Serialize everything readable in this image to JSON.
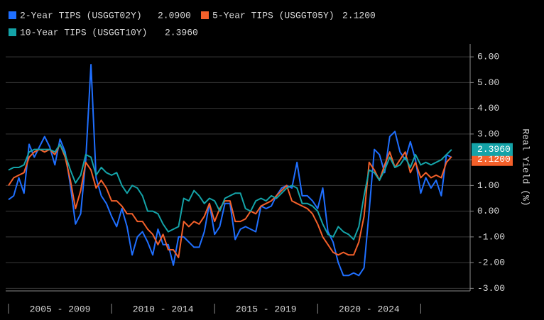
{
  "chart_data": {
    "type": "line",
    "y_axis_label": "Real Yield (%)",
    "x": [
      2005,
      2005.25,
      2005.5,
      2005.75,
      2006,
      2006.25,
      2006.5,
      2006.75,
      2007,
      2007.25,
      2007.5,
      2007.75,
      2008,
      2008.25,
      2008.5,
      2008.75,
      2009,
      2009.25,
      2009.5,
      2009.75,
      2010,
      2010.25,
      2010.5,
      2010.75,
      2011,
      2011.25,
      2011.5,
      2011.75,
      2012,
      2012.25,
      2012.5,
      2012.75,
      2013,
      2013.25,
      2013.5,
      2013.75,
      2014,
      2014.25,
      2014.5,
      2014.75,
      2015,
      2015.25,
      2015.5,
      2015.75,
      2016,
      2016.25,
      2016.5,
      2016.75,
      2017,
      2017.25,
      2017.5,
      2017.75,
      2018,
      2018.25,
      2018.5,
      2018.75,
      2019,
      2019.25,
      2019.5,
      2019.75,
      2020,
      2020.25,
      2020.5,
      2020.75,
      2021,
      2021.25,
      2021.5,
      2021.75,
      2022,
      2022.25,
      2022.5,
      2022.75,
      2023,
      2023.25,
      2023.5,
      2023.75,
      2024,
      2024.25,
      2024.5,
      2024.75,
      2025,
      2025.25,
      2025.5,
      2025.75,
      2026,
      2026.25,
      2026.5
    ],
    "xlim": [
      2005,
      2027.4
    ],
    "xticks": [
      2005,
      2010,
      2015,
      2020,
      2025
    ],
    "x_period_labels": [
      "2005 - 2009",
      "2010 - 2014",
      "2015 - 2019",
      "2020 - 2024"
    ],
    "ylim": [
      -3.1,
      6.5
    ],
    "yticks": [
      {
        "value": -3,
        "label": "-3.00"
      },
      {
        "value": -2,
        "label": "-2.00"
      },
      {
        "value": -1,
        "label": "-1.00"
      },
      {
        "value": 0,
        "label": "0.00"
      },
      {
        "value": 1,
        "label": "1.00"
      },
      {
        "value": 2,
        "label": "2.00"
      },
      {
        "value": 3,
        "label": "3.00"
      },
      {
        "value": 4,
        "label": "4.00"
      },
      {
        "value": 5,
        "label": "5.00"
      },
      {
        "value": 6,
        "label": "6.00"
      }
    ],
    "grid": true,
    "series": [
      {
        "name": "2-Year TIPS (USGGT02Y)",
        "color": "#1f6fff",
        "last_label": "2.0900",
        "values": [
          0.45,
          0.6,
          1.3,
          0.7,
          2.6,
          2.1,
          2.5,
          2.9,
          2.5,
          1.8,
          2.8,
          2.3,
          1.0,
          -0.5,
          -0.1,
          2.0,
          5.7,
          1.3,
          0.6,
          0.3,
          -0.2,
          -0.6,
          0.1,
          -0.6,
          -1.7,
          -1.0,
          -0.8,
          -1.2,
          -1.7,
          -0.7,
          -1.3,
          -1.3,
          -2.1,
          -1.0,
          -1.0,
          -1.2,
          -1.4,
          -1.4,
          -0.8,
          0.3,
          -0.9,
          -0.6,
          0.3,
          0.3,
          -1.1,
          -0.7,
          -0.6,
          -0.7,
          -0.8,
          0.2,
          0.1,
          0.2,
          0.6,
          0.9,
          1.0,
          0.9,
          1.9,
          0.6,
          0.6,
          0.4,
          0.1,
          0.9,
          -0.8,
          -1.2,
          -2.0,
          -2.5,
          -2.5,
          -2.4,
          -2.5,
          -2.2,
          0.0,
          2.4,
          2.2,
          1.5,
          2.9,
          3.1,
          2.3,
          2.0,
          2.7,
          2.0,
          0.7,
          1.3,
          0.9,
          1.2,
          0.6,
          2.2,
          2.09
        ]
      },
      {
        "name": "5-Year TIPS (USGGT05Y)",
        "color": "#f4602a",
        "last_label": "2.1200",
        "values": [
          1.0,
          1.3,
          1.4,
          1.5,
          2.1,
          2.3,
          2.4,
          2.3,
          2.4,
          2.2,
          2.6,
          2.1,
          1.2,
          0.1,
          0.8,
          1.9,
          1.6,
          0.9,
          1.2,
          0.9,
          0.4,
          0.4,
          0.2,
          -0.1,
          -0.1,
          -0.4,
          -0.4,
          -0.7,
          -0.9,
          -1.3,
          -0.9,
          -1.5,
          -1.5,
          -1.8,
          -0.4,
          -0.6,
          -0.4,
          -0.5,
          -0.2,
          0.3,
          -0.4,
          0.1,
          0.4,
          0.4,
          -0.4,
          -0.4,
          -0.3,
          0.0,
          -0.1,
          0.2,
          0.3,
          0.4,
          0.6,
          0.8,
          1.0,
          0.4,
          0.3,
          0.2,
          0.1,
          -0.1,
          -0.5,
          -1.0,
          -1.3,
          -1.6,
          -1.7,
          -1.6,
          -1.7,
          -1.7,
          -1.2,
          -0.2,
          1.9,
          1.6,
          1.2,
          1.8,
          2.3,
          1.7,
          2.0,
          2.3,
          1.5,
          1.9,
          1.3,
          1.5,
          1.3,
          1.4,
          1.3,
          1.9,
          2.12
        ]
      },
      {
        "name": "10-Year TIPS (USGGT10Y)",
        "color": "#14a3a8",
        "last_label": "2.3960",
        "values": [
          1.6,
          1.7,
          1.7,
          1.8,
          2.3,
          2.4,
          2.4,
          2.4,
          2.4,
          2.3,
          2.6,
          2.2,
          1.6,
          1.1,
          1.4,
          2.2,
          2.1,
          1.4,
          1.7,
          1.5,
          1.4,
          1.5,
          1.0,
          0.7,
          1.0,
          0.9,
          0.6,
          0.0,
          0.0,
          -0.1,
          -0.5,
          -0.8,
          -0.7,
          -0.6,
          0.5,
          0.4,
          0.8,
          0.6,
          0.3,
          0.5,
          0.4,
          0.0,
          0.5,
          0.6,
          0.7,
          0.7,
          0.1,
          0.0,
          0.4,
          0.5,
          0.4,
          0.6,
          0.5,
          0.7,
          0.9,
          1.0,
          0.9,
          0.3,
          0.3,
          0.2,
          0.0,
          -0.5,
          -0.9,
          -1.0,
          -0.6,
          -0.8,
          -0.9,
          -1.1,
          -0.6,
          0.6,
          1.6,
          1.5,
          1.2,
          1.6,
          2.1,
          1.7,
          1.8,
          2.1,
          1.7,
          2.2,
          1.8,
          1.9,
          1.8,
          1.9,
          2.0,
          2.2,
          2.396
        ]
      }
    ]
  }
}
